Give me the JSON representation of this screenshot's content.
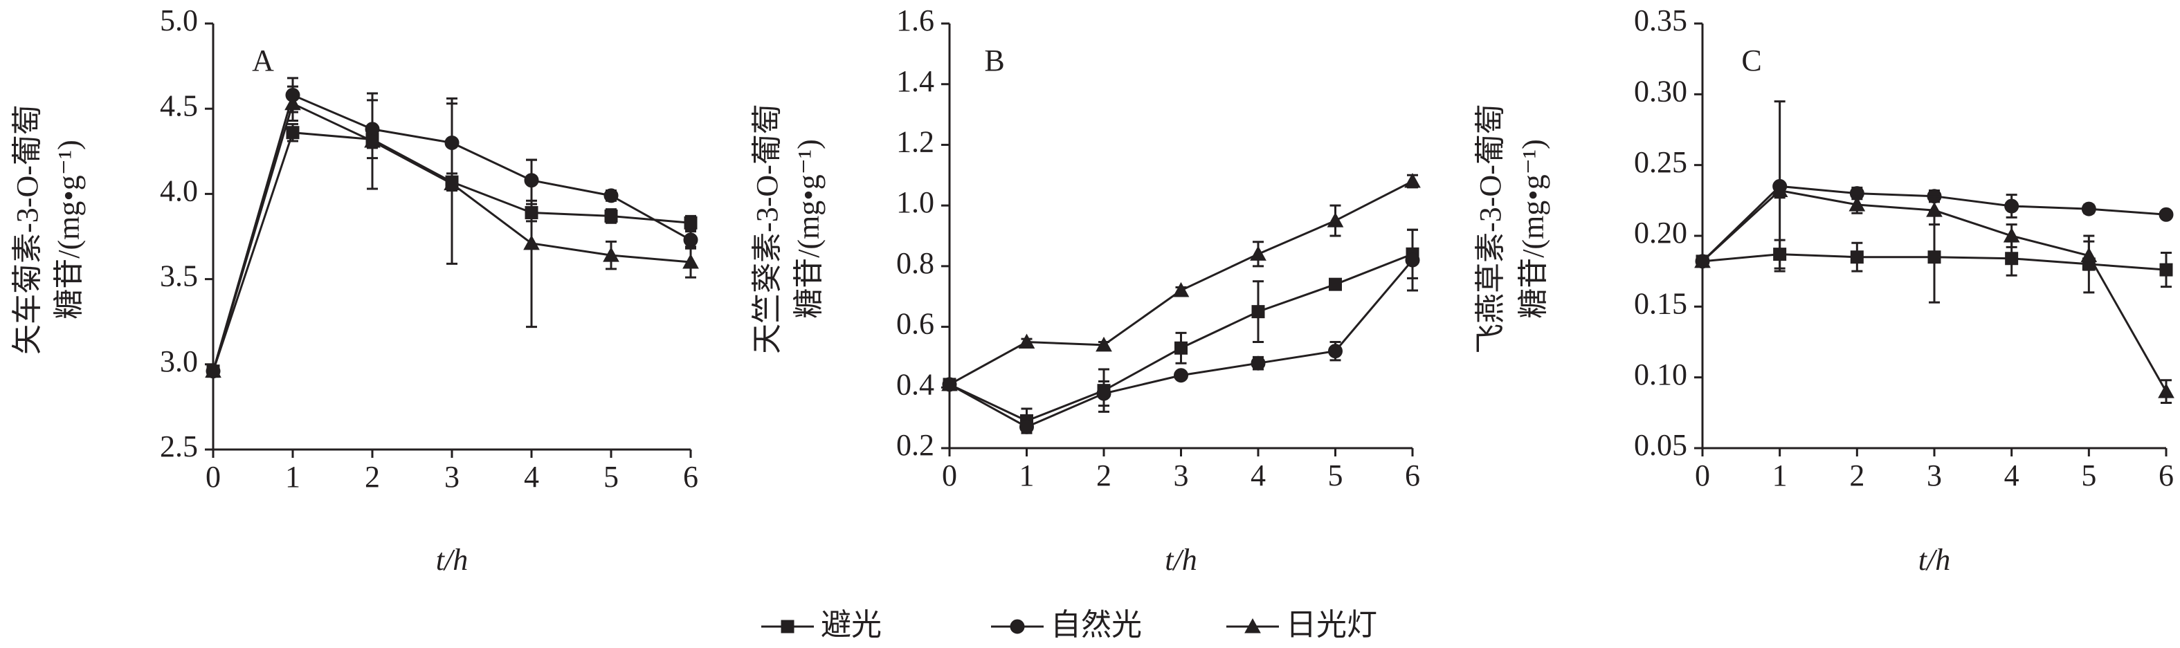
{
  "chart_data": [
    {
      "type": "line",
      "panel_label": "A",
      "ylabel": [
        "矢车菊素-3-O-葡萄",
        "糖苷/(mg•g⁻¹)"
      ],
      "xlabel": "t/h",
      "x": [
        0,
        1,
        2,
        3,
        4,
        5,
        6
      ],
      "xlim": [
        0,
        6
      ],
      "xticks": [
        0,
        1,
        2,
        3,
        4,
        5,
        6
      ],
      "ylim": [
        2.5,
        5.0
      ],
      "yticks": [
        2.5,
        {
          "value": 3,
          "label": "3.0"
        },
        3.5,
        {
          "value": 4,
          "label": "4.0"
        },
        4.5,
        {
          "value": 5,
          "label": "5.0"
        }
      ],
      "series": [
        {
          "name": "避光",
          "marker": "square",
          "color": "#231f20",
          "values": [
            2.96,
            4.36,
            4.32,
            4.07,
            3.89,
            3.87,
            3.83
          ],
          "errors": [
            0,
            0.05,
            0.05,
            0.05,
            0.05,
            0.04,
            0.04
          ]
        },
        {
          "name": "自然光",
          "marker": "circle",
          "color": "#231f20",
          "values": [
            2.96,
            4.58,
            4.38,
            4.3,
            4.08,
            3.99,
            3.73
          ],
          "errors": [
            0,
            0.1,
            0.17,
            0.26,
            0.12,
            0.03,
            0.05
          ]
        },
        {
          "name": "日光灯",
          "marker": "triangle",
          "color": "#231f20",
          "values": [
            2.96,
            4.53,
            4.31,
            4.06,
            3.71,
            3.64,
            3.6
          ],
          "errors": [
            0,
            0.1,
            0.28,
            0.47,
            0.49,
            0.08,
            0.09
          ]
        }
      ]
    },
    {
      "type": "line",
      "panel_label": "B",
      "ylabel": [
        "天竺葵素-3-O-葡萄",
        "糖苷/(mg•g⁻¹)"
      ],
      "xlabel": "t/h",
      "x": [
        0,
        1,
        2,
        3,
        4,
        5,
        6
      ],
      "xlim": [
        0,
        6
      ],
      "xticks": [
        0,
        1,
        2,
        3,
        4,
        5,
        6
      ],
      "ylim": [
        0.2,
        1.6
      ],
      "yticks": [
        0.2,
        0.4,
        0.6,
        0.8,
        {
          "value": 1,
          "label": "1.0"
        },
        1.2,
        1.4,
        1.6
      ],
      "series": [
        {
          "name": "避光",
          "marker": "square",
          "color": "#231f20",
          "values": [
            0.41,
            0.29,
            0.39,
            0.53,
            0.65,
            0.74,
            0.84
          ],
          "errors": [
            0,
            0.04,
            0.07,
            0.05,
            0.1,
            0.01,
            0.08
          ]
        },
        {
          "name": "自然光",
          "marker": "circle",
          "color": "#231f20",
          "values": [
            0.41,
            0.27,
            0.38,
            0.44,
            0.48,
            0.52,
            0.82
          ],
          "errors": [
            0,
            0.02,
            0.04,
            0.01,
            0.02,
            0.03,
            0.1
          ]
        },
        {
          "name": "日光灯",
          "marker": "triangle",
          "color": "#231f20",
          "values": [
            0.41,
            0.55,
            0.54,
            0.72,
            0.84,
            0.95,
            1.08
          ],
          "errors": [
            0,
            0.01,
            0.01,
            0.01,
            0.04,
            0.05,
            0.02
          ]
        }
      ]
    },
    {
      "type": "line",
      "panel_label": "C",
      "ylabel": [
        "飞燕草素-3-O-葡萄",
        "糖苷/(mg•g⁻¹)"
      ],
      "xlabel": "t/h",
      "x": [
        0,
        1,
        2,
        3,
        4,
        5,
        6
      ],
      "xlim": [
        0,
        6
      ],
      "xticks": [
        0,
        1,
        2,
        3,
        4,
        5,
        6
      ],
      "ylim": [
        0.05,
        0.35
      ],
      "yticks": [
        0.05,
        {
          "value": 0.1,
          "label": "0.10"
        },
        0.15,
        {
          "value": 0.2,
          "label": "0.20"
        },
        0.25,
        {
          "value": 0.3,
          "label": "0.30"
        },
        0.35
      ],
      "series": [
        {
          "name": "避光",
          "marker": "square",
          "color": "#231f20",
          "values": [
            0.182,
            0.187,
            0.185,
            0.185,
            0.184,
            0.18,
            0.176
          ],
          "errors": [
            0,
            0.01,
            0.01,
            0.032,
            0.012,
            0.02,
            0.012
          ]
        },
        {
          "name": "自然光",
          "marker": "circle",
          "color": "#231f20",
          "values": [
            0.182,
            0.235,
            0.23,
            0.228,
            0.221,
            0.219,
            0.215
          ],
          "errors": [
            0,
            0.06,
            0.004,
            0.004,
            0.008,
            0.003,
            0.002
          ]
        },
        {
          "name": "日光灯",
          "marker": "triangle",
          "color": "#231f20",
          "values": [
            0.182,
            0.232,
            0.222,
            0.218,
            0.2,
            0.186,
            0.09
          ],
          "errors": [
            0,
            0.005,
            0.006,
            0.01,
            0.008,
            0.01,
            0.008
          ]
        }
      ]
    }
  ]
}
